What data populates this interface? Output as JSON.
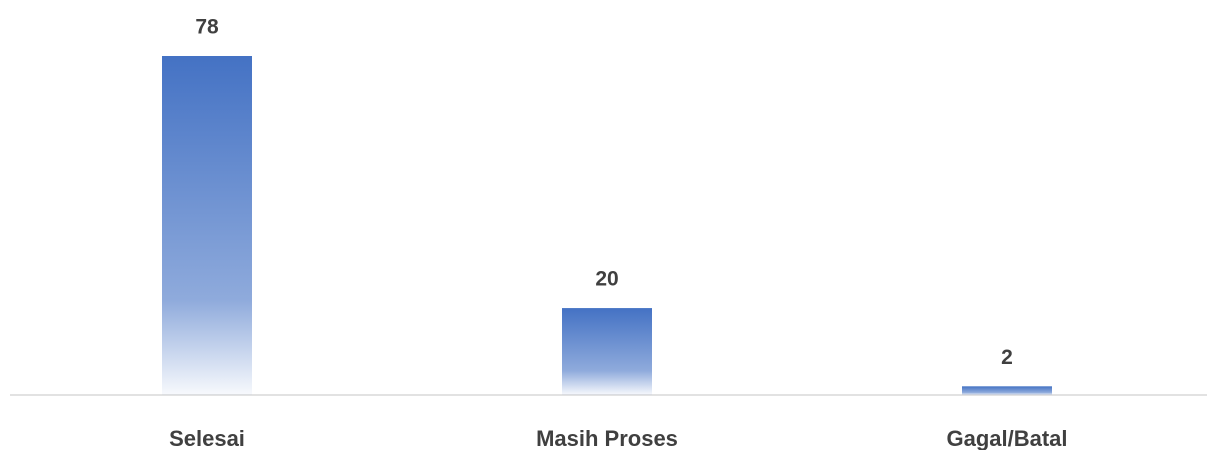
{
  "chart_data": {
    "type": "bar",
    "categories": [
      "Selesai",
      "Masih Proses",
      "Gagal/Batal"
    ],
    "values": [
      78,
      20,
      2
    ],
    "color": "#4472c4"
  }
}
